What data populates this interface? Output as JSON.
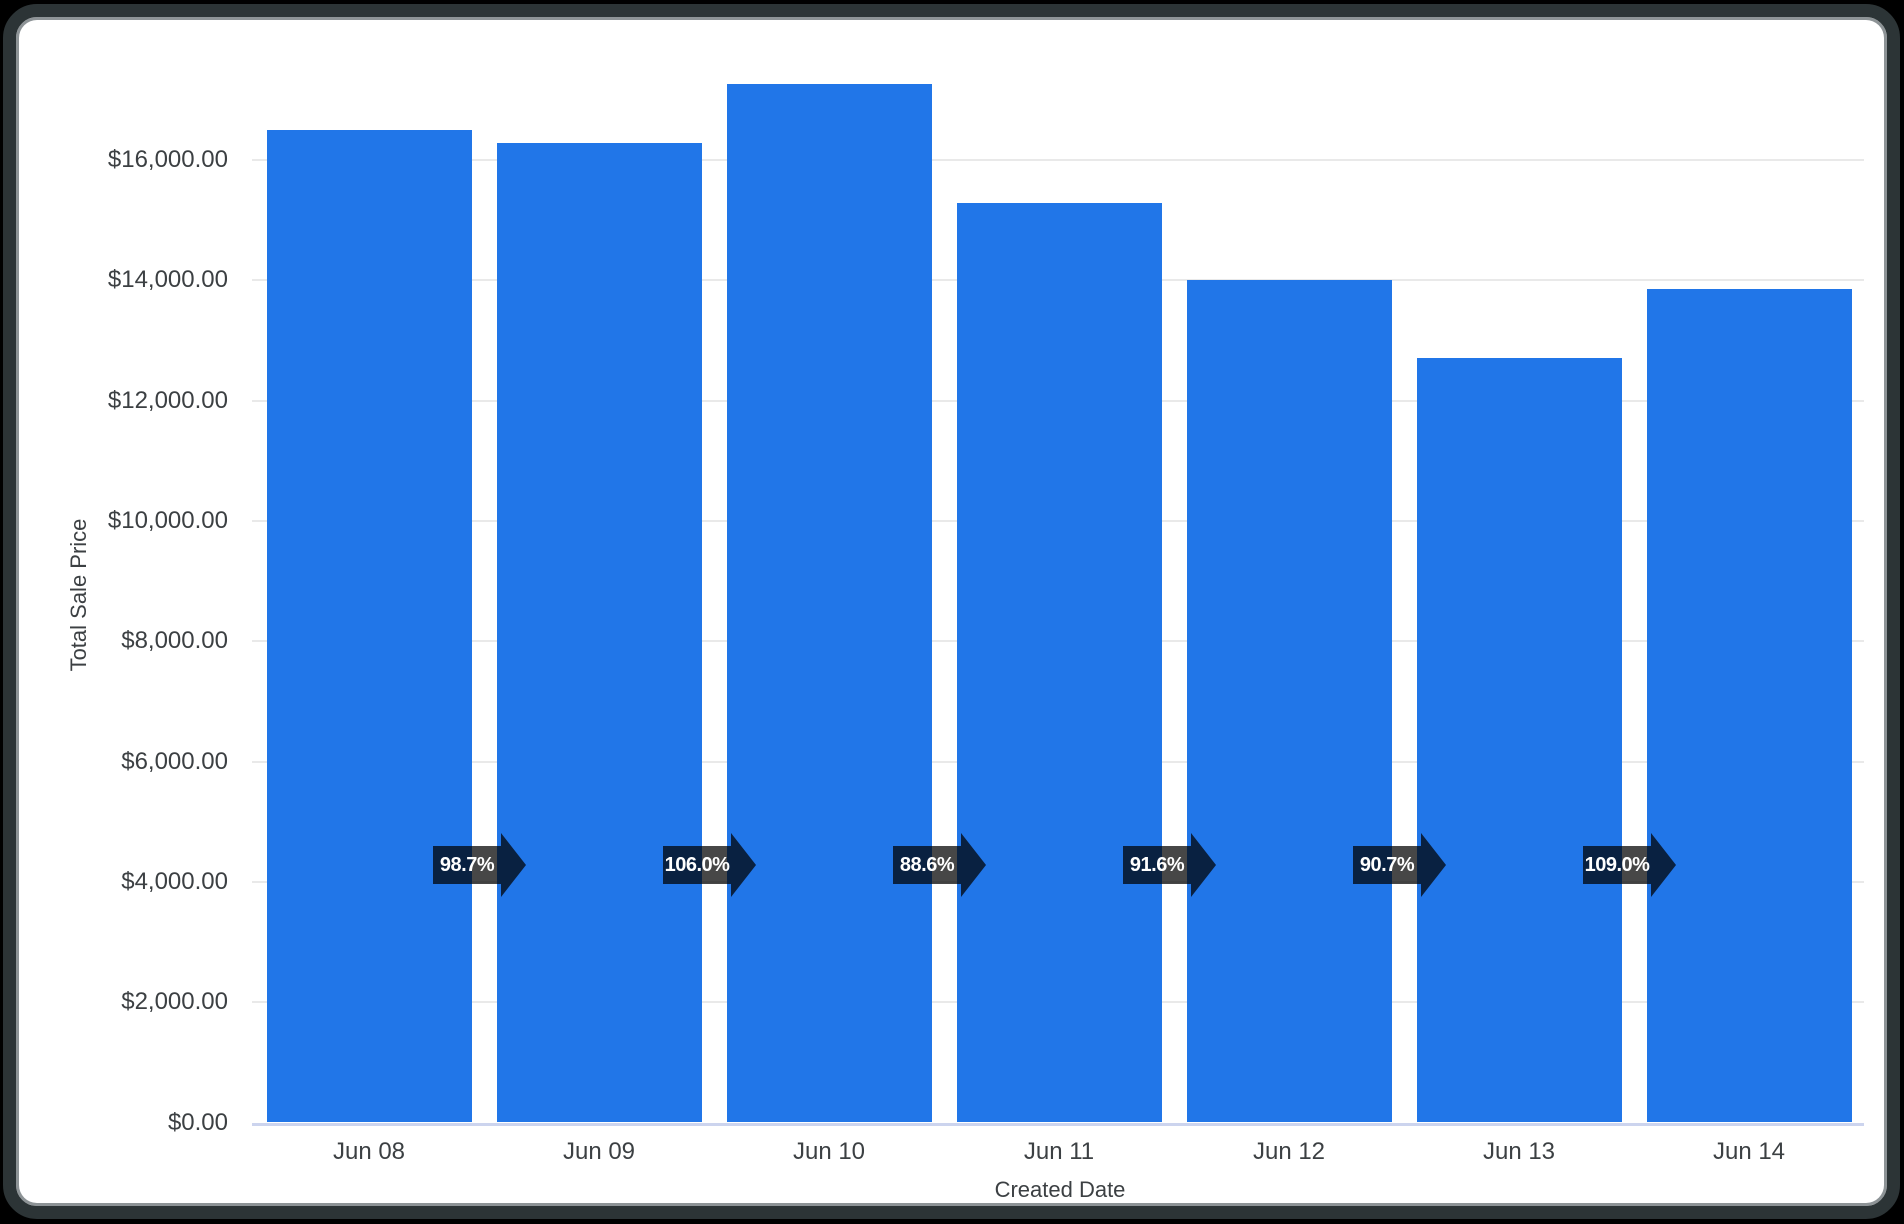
{
  "chart_data": {
    "type": "bar",
    "title": "",
    "xlabel": "Created Date",
    "ylabel": "Total Sale Price",
    "categories": [
      "Jun 08",
      "Jun 09",
      "Jun 10",
      "Jun 11",
      "Jun 12",
      "Jun 13",
      "Jun 14"
    ],
    "values": [
      16500,
      16286,
      17263,
      15295,
      14010,
      12707,
      13851
    ],
    "pct_change_labels": [
      "98.7%",
      "106.0%",
      "88.6%",
      "91.6%",
      "90.7%",
      "109.0%"
    ],
    "y_axis": {
      "step": 2000,
      "max": 16000,
      "tick_labels": [
        "$0.00",
        "$2,000.00",
        "$4,000.00",
        "$6,000.00",
        "$8,000.00",
        "$10,000.00",
        "$12,000.00",
        "$14,000.00",
        "$16,000.00"
      ]
    },
    "ylim": [
      0,
      17380
    ],
    "grid": "horizontal",
    "legend": "none",
    "colors": {
      "bar": "#2176e8",
      "arrow": "rgba(0,0,0,0.72)",
      "gridline": "#e9e9e9",
      "zero_line": "#ccd4ee",
      "axis_text": "#3c4043",
      "frame_border": "#2c3436",
      "frame_hairline": "#8d9396"
    }
  }
}
